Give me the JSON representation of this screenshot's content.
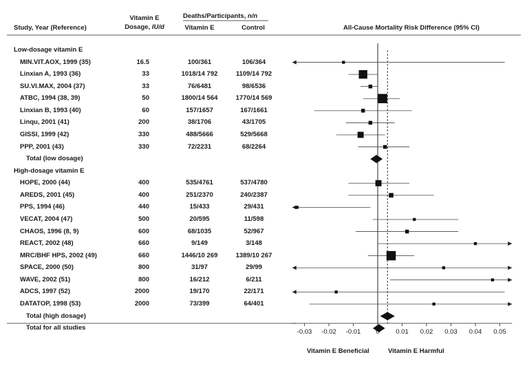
{
  "headers": {
    "study": "Study, Year (Reference)",
    "dosage_line1": "Vitamin E",
    "dosage_line2_prefix": "Dosage, ",
    "dosage_unit": "IU/d",
    "deaths_prefix": "Deaths/Participants, ",
    "deaths_unit": "n/n",
    "vitamin_e": "Vitamin E",
    "control": "Control",
    "risk": "All-Cause Mortality Risk Difference (95% CI)"
  },
  "footer": {
    "beneficial": "Vitamin E Beneficial",
    "harmful": "Vitamin E Harmful"
  },
  "chart_data": {
    "type": "forest",
    "title": "All-Cause Mortality Risk Difference (95% CI)",
    "xlim": [
      -0.035,
      0.055
    ],
    "xticks": [
      "-0.03",
      "-0.02",
      "-0.01",
      "0",
      "0.01",
      "0.02",
      "0.03",
      "0.04",
      "0.05"
    ],
    "xtick_values": [
      -0.03,
      -0.02,
      -0.01,
      0,
      0.01,
      0.02,
      0.03,
      0.04,
      0.05
    ],
    "reference_line": 0,
    "pooled_line": 0.004,
    "rows": [
      {
        "kind": "section",
        "label": "Low-dosage vitamin E"
      },
      {
        "kind": "study",
        "label": "MIN.VIT.AOX, 1999 (35)",
        "dose": "16.5",
        "ve": "100/361",
        "ctrl": "106/364",
        "rd": -0.014,
        "lo": -0.035,
        "hi": 0.052,
        "weight": 2,
        "arrow_left": true,
        "arrow_right": false
      },
      {
        "kind": "study",
        "label": "Linxian A, 1993 (36)",
        "dose": "33",
        "ve": "1018/14 792",
        "ctrl": "1109/14 792",
        "rd": -0.006,
        "lo": -0.012,
        "hi": 0.0,
        "weight": 9,
        "arrow_left": false,
        "arrow_right": false
      },
      {
        "kind": "study",
        "label": "SU.VI.MAX, 2004 (37)",
        "dose": "33",
        "ve": "76/6481",
        "ctrl": "98/6536",
        "rd": -0.003,
        "lo": -0.007,
        "hi": 0.0,
        "weight": 3,
        "arrow_left": false,
        "arrow_right": false
      },
      {
        "kind": "study",
        "label": "ATBC, 1994 (38, 39)",
        "dose": "50",
        "ve": "1800/14 564",
        "ctrl": "1770/14 569",
        "rd": 0.002,
        "lo": -0.006,
        "hi": 0.009,
        "weight": 10,
        "arrow_left": false,
        "arrow_right": false
      },
      {
        "kind": "study",
        "label": "Linxian B, 1993 (40)",
        "dose": "60",
        "ve": "157/1657",
        "ctrl": "167/1661",
        "rd": -0.006,
        "lo": -0.026,
        "hi": 0.014,
        "weight": 3,
        "arrow_left": false,
        "arrow_right": false
      },
      {
        "kind": "study",
        "label": "Linqu, 2001 (41)",
        "dose": "200",
        "ve": "38/1706",
        "ctrl": "43/1705",
        "rd": -0.003,
        "lo": -0.013,
        "hi": 0.007,
        "weight": 3,
        "arrow_left": false,
        "arrow_right": false
      },
      {
        "kind": "study",
        "label": "GISSI, 1999 (42)",
        "dose": "330",
        "ve": "488/5666",
        "ctrl": "529/5668",
        "rd": -0.007,
        "lo": -0.017,
        "hi": 0.003,
        "weight": 6,
        "arrow_left": false,
        "arrow_right": false
      },
      {
        "kind": "study",
        "label": "PPP, 2001 (43)",
        "dose": "330",
        "ve": "72/2231",
        "ctrl": "68/2264",
        "rd": 0.003,
        "lo": -0.008,
        "hi": 0.013,
        "weight": 3,
        "arrow_left": false,
        "arrow_right": false
      },
      {
        "kind": "total",
        "label": "Total (low dosage)",
        "rd": -0.0005,
        "lo": -0.003,
        "hi": 0.002
      },
      {
        "kind": "section",
        "label": "High-dosage vitamin E"
      },
      {
        "kind": "study",
        "label": "HOPE, 2000 (44)",
        "dose": "400",
        "ve": "535/4761",
        "ctrl": "537/4780",
        "rd": 0.0003,
        "lo": -0.012,
        "hi": 0.013,
        "weight": 6,
        "arrow_left": false,
        "arrow_right": false
      },
      {
        "kind": "study",
        "label": "AREDS, 2001 (45)",
        "dose": "400",
        "ve": "251/2370",
        "ctrl": "240/2387",
        "rd": 0.0055,
        "lo": -0.012,
        "hi": 0.023,
        "weight": 4,
        "arrow_left": false,
        "arrow_right": false
      },
      {
        "kind": "study",
        "label": "PPS, 1994 (46)",
        "dose": "440",
        "ve": "15/433",
        "ctrl": "29/431",
        "rd": -0.033,
        "lo": -0.035,
        "hi": -0.003,
        "weight": 2,
        "arrow_left": true,
        "arrow_right": false
      },
      {
        "kind": "study",
        "label": "VECAT, 2004 (47)",
        "dose": "500",
        "ve": "20/595",
        "ctrl": "11/598",
        "rd": 0.015,
        "lo": -0.002,
        "hi": 0.033,
        "weight": 2,
        "arrow_left": false,
        "arrow_right": false
      },
      {
        "kind": "study",
        "label": "CHAOS, 1996 (8, 9)",
        "dose": "600",
        "ve": "68/1035",
        "ctrl": "52/967",
        "rd": 0.012,
        "lo": -0.009,
        "hi": 0.033,
        "weight": 3,
        "arrow_left": false,
        "arrow_right": false
      },
      {
        "kind": "study",
        "label": "REACT, 2002 (48)",
        "dose": "660",
        "ve": "9/149",
        "ctrl": "3/148",
        "rd": 0.04,
        "lo": 0.0,
        "hi": 0.055,
        "weight": 2,
        "arrow_left": false,
        "arrow_right": true
      },
      {
        "kind": "study",
        "label": "MRC/BHF HPS, 2002 (49)",
        "dose": "660",
        "ve": "1446/10 269",
        "ctrl": "1389/10 267",
        "rd": 0.0055,
        "lo": -0.004,
        "hi": 0.015,
        "weight": 10,
        "arrow_left": false,
        "arrow_right": false
      },
      {
        "kind": "study",
        "label": "SPACE, 2000 (50)",
        "dose": "800",
        "ve": "31/97",
        "ctrl": "29/99",
        "rd": 0.027,
        "lo": -0.035,
        "hi": 0.055,
        "weight": 2,
        "arrow_left": true,
        "arrow_right": true
      },
      {
        "kind": "study",
        "label": "WAVE, 2002 (51)",
        "dose": "800",
        "ve": "16/212",
        "ctrl": "6/211",
        "rd": 0.047,
        "lo": 0.005,
        "hi": 0.055,
        "weight": 2,
        "arrow_left": false,
        "arrow_right": true
      },
      {
        "kind": "study",
        "label": "ADCS, 1997 (52)",
        "dose": "2000",
        "ve": "19/170",
        "ctrl": "22/171",
        "rd": -0.017,
        "lo": -0.035,
        "hi": 0.052,
        "weight": 2,
        "arrow_left": true,
        "arrow_right": false
      },
      {
        "kind": "study",
        "label": "DATATOP, 1998 (53)",
        "dose": "2000",
        "ve": "73/399",
        "ctrl": "64/401",
        "rd": 0.023,
        "lo": -0.028,
        "hi": 0.055,
        "weight": 2,
        "arrow_left": false,
        "arrow_right": true
      },
      {
        "kind": "total",
        "label": "Total (high dosage)",
        "rd": 0.004,
        "lo": 0.001,
        "hi": 0.007
      },
      {
        "kind": "total",
        "label": "Total for all studies",
        "rd": 0.0005,
        "lo": -0.002,
        "hi": 0.003
      }
    ]
  }
}
